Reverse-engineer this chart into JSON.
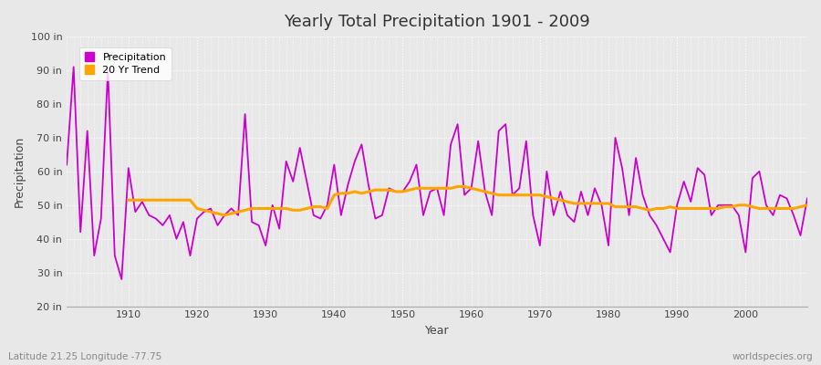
{
  "title": "Yearly Total Precipitation 1901 - 2009",
  "xlabel": "Year",
  "ylabel": "Precipitation",
  "xlim": [
    1901,
    2009
  ],
  "ylim": [
    20,
    100
  ],
  "yticks": [
    20,
    30,
    40,
    50,
    60,
    70,
    80,
    90,
    100
  ],
  "ytick_labels": [
    "20 in",
    "30 in",
    "40 in",
    "50 in",
    "60 in",
    "70 in",
    "80 in",
    "90 in",
    "100 in"
  ],
  "xticks": [
    1910,
    1920,
    1930,
    1940,
    1950,
    1960,
    1970,
    1980,
    1990,
    2000
  ],
  "precipitation_color": "#CC00CC",
  "trend_color": "#FFA500",
  "background_color": "#E8E8E8",
  "plot_bg_color": "#E8E8E8",
  "grid_color": "#FFFFFF",
  "subtitle_left": "Latitude 21.25 Longitude -77.75",
  "subtitle_right": "worldspecies.org",
  "legend_labels": [
    "Precipitation",
    "20 Yr Trend"
  ],
  "years": [
    1901,
    1902,
    1903,
    1904,
    1905,
    1906,
    1907,
    1908,
    1909,
    1910,
    1911,
    1912,
    1913,
    1914,
    1915,
    1916,
    1917,
    1918,
    1919,
    1920,
    1921,
    1922,
    1923,
    1924,
    1925,
    1926,
    1927,
    1928,
    1929,
    1930,
    1931,
    1932,
    1933,
    1934,
    1935,
    1936,
    1937,
    1938,
    1939,
    1940,
    1941,
    1942,
    1943,
    1944,
    1945,
    1946,
    1947,
    1948,
    1949,
    1950,
    1951,
    1952,
    1953,
    1954,
    1955,
    1956,
    1957,
    1958,
    1959,
    1960,
    1961,
    1962,
    1963,
    1964,
    1965,
    1966,
    1967,
    1968,
    1969,
    1970,
    1971,
    1972,
    1973,
    1974,
    1975,
    1976,
    1977,
    1978,
    1979,
    1980,
    1981,
    1982,
    1983,
    1984,
    1985,
    1986,
    1987,
    1988,
    1989,
    1990,
    1991,
    1992,
    1993,
    1994,
    1995,
    1996,
    1997,
    1998,
    1999,
    2000,
    2001,
    2002,
    2003,
    2004,
    2005,
    2006,
    2007,
    2008,
    2009
  ],
  "precip_values": [
    62,
    91,
    42,
    72,
    35,
    46,
    90,
    35,
    28,
    61,
    48,
    51,
    47,
    46,
    44,
    47,
    40,
    45,
    35,
    46,
    48,
    49,
    44,
    47,
    49,
    47,
    77,
    45,
    44,
    38,
    50,
    43,
    63,
    57,
    67,
    57,
    47,
    46,
    50,
    62,
    47,
    56,
    63,
    68,
    56,
    46,
    47,
    55,
    54,
    54,
    57,
    62,
    47,
    54,
    55,
    47,
    68,
    74,
    53,
    55,
    69,
    54,
    47,
    72,
    74,
    53,
    55,
    69,
    47,
    38,
    60,
    47,
    54,
    47,
    45,
    54,
    47,
    55,
    50,
    38,
    70,
    61,
    47,
    64,
    53,
    47,
    44,
    40,
    36,
    50,
    57,
    51,
    61,
    59,
    47,
    50,
    50,
    50,
    47,
    36,
    58,
    60,
    50,
    47,
    53,
    52,
    47,
    41,
    52
  ],
  "trend_years": [
    1910,
    1911,
    1912,
    1913,
    1914,
    1915,
    1916,
    1917,
    1918,
    1919,
    1920,
    1921,
    1922,
    1923,
    1924,
    1925,
    1926,
    1927,
    1928,
    1929,
    1930,
    1931,
    1932,
    1933,
    1934,
    1935,
    1936,
    1937,
    1938,
    1939,
    1940,
    1941,
    1942,
    1943,
    1944,
    1945,
    1946,
    1947,
    1948,
    1949,
    1950,
    1951,
    1952,
    1953,
    1954,
    1955,
    1956,
    1957,
    1958,
    1959,
    1960,
    1961,
    1962,
    1963,
    1964,
    1965,
    1966,
    1967,
    1968,
    1969,
    1970,
    1971,
    1972,
    1973,
    1974,
    1975,
    1976,
    1977,
    1978,
    1979,
    1980,
    1981,
    1982,
    1983,
    1984,
    1985,
    1986,
    1987,
    1988,
    1989,
    1990,
    1991,
    1992,
    1993,
    1994,
    1995,
    1996,
    1997,
    1998,
    1999,
    2000,
    2001,
    2002,
    2003,
    2004,
    2005,
    2006,
    2007,
    2008,
    2009
  ],
  "trend_values": [
    51.5,
    51.5,
    51.5,
    51.5,
    51.5,
    51.5,
    51.5,
    51.5,
    51.5,
    51.5,
    49.0,
    48.5,
    48.0,
    47.5,
    47.0,
    47.5,
    48.0,
    48.5,
    49.0,
    49.0,
    49.0,
    49.0,
    49.0,
    49.0,
    48.5,
    48.5,
    49.0,
    49.5,
    49.5,
    49.0,
    53.0,
    53.5,
    53.5,
    54.0,
    53.5,
    54.0,
    54.5,
    54.5,
    54.5,
    54.0,
    54.0,
    54.5,
    55.0,
    55.0,
    55.0,
    55.0,
    55.0,
    55.0,
    55.5,
    55.5,
    55.0,
    54.5,
    54.0,
    53.5,
    53.0,
    53.0,
    53.0,
    53.0,
    53.0,
    53.0,
    53.0,
    52.5,
    52.0,
    51.5,
    51.0,
    50.5,
    50.5,
    50.5,
    50.5,
    50.5,
    50.5,
    49.5,
    49.5,
    49.5,
    49.5,
    49.0,
    48.5,
    49.0,
    49.0,
    49.5,
    49.0,
    49.0,
    49.0,
    49.0,
    49.0,
    49.0,
    49.0,
    49.5,
    49.5,
    50.0,
    50.0,
    49.5,
    49.0,
    49.0,
    49.0,
    49.0,
    49.0,
    49.0,
    49.5,
    50.0
  ]
}
